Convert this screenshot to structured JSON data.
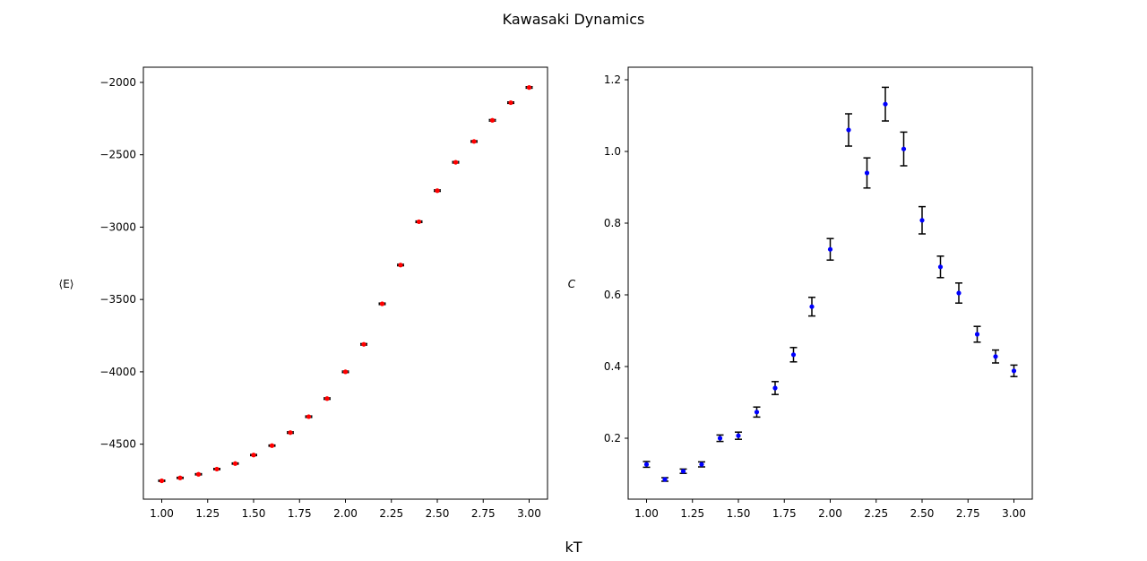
{
  "figure": {
    "suptitle": "Kawasaki Dynamics",
    "shared_xlabel": "kT"
  },
  "chart_data": [
    {
      "type": "scatter",
      "subtype": "errorbar",
      "title": "",
      "xlabel": "",
      "ylabel": "⟨E⟩",
      "xlim": [
        0.9,
        3.1
      ],
      "ylim": [
        -4880,
        -1895
      ],
      "xticks": [
        1.0,
        1.25,
        1.5,
        1.75,
        2.0,
        2.25,
        2.5,
        2.75,
        3.0
      ],
      "xtick_labels": [
        "1.00",
        "1.25",
        "1.50",
        "1.75",
        "2.00",
        "2.25",
        "2.50",
        "2.75",
        "3.00"
      ],
      "yticks": [
        -4500,
        -4000,
        -3500,
        -3000,
        -2500,
        -2000
      ],
      "ytick_labels": [
        "−4500",
        "−4000",
        "−3500",
        "−3000",
        "−2500",
        "−2000"
      ],
      "grid": false,
      "marker_color": "#ff0000",
      "errorbar_color": "#000000",
      "series": [
        {
          "x": [
            1.0,
            1.1,
            1.2,
            1.3,
            1.4,
            1.5,
            1.6,
            1.7,
            1.8,
            1.9,
            2.0,
            2.1,
            2.2,
            2.3,
            2.4,
            2.5,
            2.6,
            2.7,
            2.8,
            2.9,
            3.0
          ],
          "y": [
            -4753,
            -4733,
            -4708,
            -4672,
            -4634,
            -4575,
            -4510,
            -4420,
            -4310,
            -4185,
            -4000,
            -3810,
            -3530,
            -3262,
            -2963,
            -2748,
            -2552,
            -2408,
            -2262,
            -2140,
            -2035
          ],
          "yerr": [
            4,
            4,
            4,
            4,
            4,
            4,
            4,
            5,
            5,
            5,
            5,
            5,
            5,
            5,
            5,
            5,
            5,
            5,
            5,
            5,
            5
          ]
        }
      ]
    },
    {
      "type": "scatter",
      "subtype": "errorbar",
      "title": "",
      "xlabel": "",
      "ylabel": "C",
      "xlim": [
        0.9,
        3.1
      ],
      "ylim": [
        0.03,
        1.235
      ],
      "xticks": [
        1.0,
        1.25,
        1.5,
        1.75,
        2.0,
        2.25,
        2.5,
        2.75,
        3.0
      ],
      "xtick_labels": [
        "1.00",
        "1.25",
        "1.50",
        "1.75",
        "2.00",
        "2.25",
        "2.50",
        "2.75",
        "3.00"
      ],
      "yticks": [
        0.2,
        0.4,
        0.6,
        0.8,
        1.0,
        1.2
      ],
      "ytick_labels": [
        "0.2",
        "0.4",
        "0.6",
        "0.8",
        "1.0",
        "1.2"
      ],
      "grid": false,
      "marker_color": "#0000ff",
      "errorbar_color": "#000000",
      "series": [
        {
          "x": [
            1.0,
            1.1,
            1.2,
            1.3,
            1.4,
            1.5,
            1.6,
            1.7,
            1.8,
            1.9,
            2.0,
            2.1,
            2.2,
            2.3,
            2.4,
            2.5,
            2.6,
            2.7,
            2.8,
            2.9,
            3.0
          ],
          "y": [
            0.127,
            0.085,
            0.108,
            0.127,
            0.2,
            0.207,
            0.273,
            0.34,
            0.433,
            0.567,
            0.727,
            1.06,
            0.94,
            1.132,
            1.007,
            0.808,
            0.678,
            0.605,
            0.49,
            0.428,
            0.388
          ],
          "yerr": [
            0.008,
            0.005,
            0.006,
            0.007,
            0.009,
            0.01,
            0.014,
            0.018,
            0.02,
            0.026,
            0.03,
            0.045,
            0.042,
            0.047,
            0.047,
            0.038,
            0.03,
            0.028,
            0.022,
            0.018,
            0.016
          ]
        }
      ]
    }
  ]
}
